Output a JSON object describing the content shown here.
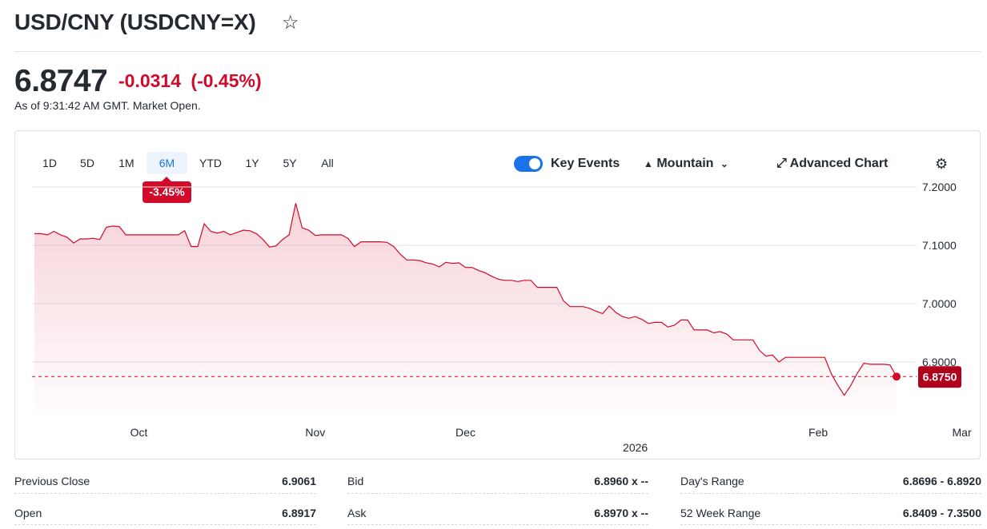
{
  "header": {
    "title": "USD/CNY (USDCNY=X)",
    "price": "6.8747",
    "change": "-0.0314",
    "change_pct": "(-0.45%)",
    "as_of": "As of 9:31:42 AM GMT. Market Open."
  },
  "toolbar": {
    "ranges": [
      "1D",
      "5D",
      "1M",
      "6M",
      "YTD",
      "1Y",
      "5Y",
      "All"
    ],
    "active_range": "6M",
    "range_change": "-3.45%",
    "key_events_label": "Key Events",
    "key_events_on": true,
    "chart_style_label": "Mountain",
    "advanced_chart_label": "Advanced Chart"
  },
  "colors": {
    "accent": "#1a73e8",
    "negative": "#d10a2a"
  },
  "chart_data": {
    "type": "area",
    "title": "",
    "xlabel": "",
    "ylabel": "",
    "ylim": [
      6.83,
      7.22
    ],
    "y_ticks": [
      "7.2000",
      "7.1000",
      "7.0000",
      "6.9000"
    ],
    "y_tick_values": [
      7.2,
      7.1,
      7.0,
      6.9
    ],
    "x_ticks": [
      "Oct",
      "Nov",
      "Dec",
      "Feb",
      "Mar"
    ],
    "x_tick_index": [
      16,
      43,
      66,
      120,
      142
    ],
    "year_label": "2026",
    "year_index": 92,
    "current_label": "6.8750",
    "current_value": 6.875,
    "grid": true,
    "series": [
      {
        "values": [
          7.12,
          7.12,
          7.118,
          7.124,
          7.118,
          7.114,
          7.104,
          7.111,
          7.111,
          7.112,
          7.11,
          7.131,
          7.133,
          7.132,
          7.118,
          7.118,
          7.118,
          7.118,
          7.118,
          7.118,
          7.118,
          7.118,
          7.118,
          7.125,
          7.098,
          7.098,
          7.137,
          7.124,
          7.121,
          7.124,
          7.118,
          7.122,
          7.126,
          7.125,
          7.12,
          7.11,
          7.097,
          7.099,
          7.11,
          7.118,
          7.172,
          7.13,
          7.126,
          7.117,
          7.118,
          7.118,
          7.118,
          7.118,
          7.112,
          7.098,
          7.106,
          7.106,
          7.106,
          7.106,
          7.105,
          7.098,
          7.085,
          7.075,
          7.075,
          7.074,
          7.07,
          7.068,
          7.063,
          7.071,
          7.069,
          7.07,
          7.062,
          7.062,
          7.057,
          7.053,
          7.047,
          7.042,
          7.04,
          7.04,
          7.038,
          7.04,
          7.04,
          7.028,
          7.028,
          7.028,
          7.028,
          7.005,
          6.995,
          6.995,
          6.995,
          6.992,
          6.987,
          6.983,
          6.996,
          6.985,
          6.978,
          6.975,
          6.978,
          6.973,
          6.966,
          6.968,
          6.968,
          6.96,
          6.963,
          6.972,
          6.972,
          6.955,
          6.955,
          6.955,
          6.95,
          6.952,
          6.948,
          6.938,
          6.938,
          6.938,
          6.938,
          6.92,
          6.91,
          6.912,
          6.9,
          6.908,
          6.908,
          6.908,
          6.908,
          6.908,
          6.908,
          6.908,
          6.88,
          6.86,
          6.843,
          6.86,
          6.881,
          6.898,
          6.896,
          6.896,
          6.896,
          6.895,
          6.875
        ]
      }
    ]
  },
  "stats": {
    "col1": [
      {
        "label": "Previous Close",
        "value": "6.9061"
      },
      {
        "label": "Open",
        "value": "6.8917"
      }
    ],
    "col2": [
      {
        "label": "Bid",
        "value": "6.8960 x --"
      },
      {
        "label": "Ask",
        "value": "6.8970 x --"
      }
    ],
    "col3": [
      {
        "label": "Day's Range",
        "value": "6.8696 - 6.8920"
      },
      {
        "label": "52 Week Range",
        "value": "6.8409 - 7.3500"
      }
    ]
  }
}
